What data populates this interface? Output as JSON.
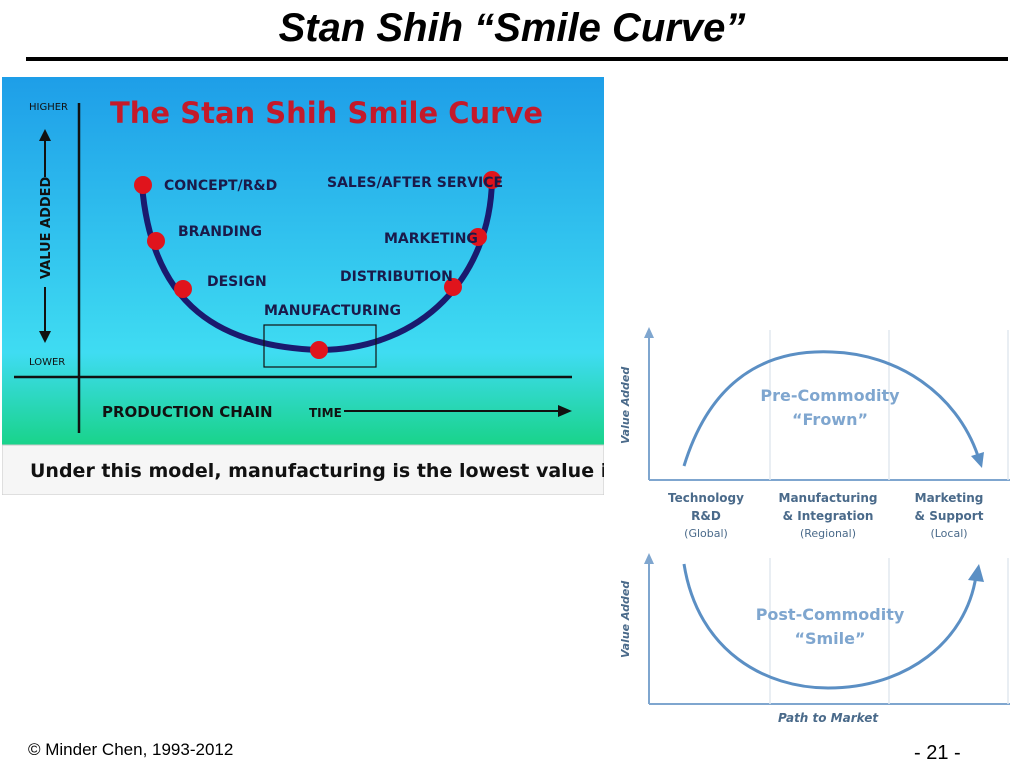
{
  "slide": {
    "title": "Stan Shih “Smile Curve”",
    "footer_left": "© Minder Chen, 1993-2012",
    "footer_right": "- 21 -"
  },
  "left_diagram": {
    "heading": "The Stan Shih Smile Curve",
    "axis_higher": "HIGHER",
    "axis_value_added": "VALUE ADDED",
    "axis_lower": "LOWER",
    "production_chain": "PRODUCTION CHAIN",
    "time": "TIME",
    "stages": {
      "concept": "CONCEPT/R&D",
      "branding": "BRANDING",
      "design": "DESIGN",
      "manufacturing": "MANUFACTURING",
      "distribution": "DISTRIBUTION",
      "marketing": "MARKETING",
      "sales": "SALES/AFTER SERVICE"
    },
    "caption": "Under this model, manufacturing is the lowest value input.",
    "colors": {
      "sky_top": "#1e9ee8",
      "sky_bottom": "#3fe0f0",
      "grass": "#19d38a",
      "curve": "#1a1a6e",
      "dot": "#e0141c",
      "heading": "#c41a2a"
    }
  },
  "right_diagram": {
    "value_added_top": "Value Added",
    "value_added_bottom": "Value Added",
    "frown_title": "Pre-Commodity",
    "frown_subtitle": "“Frown”",
    "smile_title": "Post-Commodity",
    "smile_subtitle": "“Smile”",
    "columns": [
      {
        "line1": "Technology",
        "line2": "R&D",
        "line3": "(Global)"
      },
      {
        "line1": "Manufacturing",
        "line2": "& Integration",
        "line3": "(Regional)"
      },
      {
        "line1": "Marketing",
        "line2": "& Support",
        "line3": "(Local)"
      }
    ],
    "path_to_market": "Path to Market",
    "colors": {
      "curve": "#5b8fc4",
      "axis": "#7fa6cf",
      "label": "#4a6a8a"
    }
  }
}
